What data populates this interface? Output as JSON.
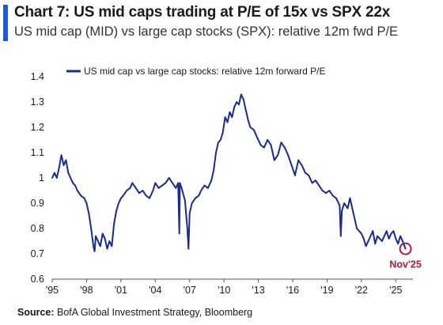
{
  "header": {
    "title": "Chart 7: US mid caps trading at P/E of 15x vs SPX 22x",
    "subtitle": "US mid cap (MID) vs large cap stocks (SPX): relative 12m fwd P/E"
  },
  "footer": {
    "source_label": "Source:",
    "source_text": " BofA Global Investment Strategy, Bloomberg"
  },
  "colors": {
    "accent": "#1f5ad6",
    "series": "#1a2b8f",
    "annotation": "#b3173a"
  },
  "chart_data": {
    "type": "line",
    "title": "Chart 7: US mid caps trading at P/E of 15x vs SPX 22x",
    "subtitle": "US mid cap (MID) vs large cap stocks (SPX): relative 12m fwd P/E",
    "xlabel": "",
    "ylabel": "",
    "ylim": [
      0.6,
      1.4
    ],
    "yticks": [
      0.6,
      0.7,
      0.8,
      0.9,
      1,
      1.1,
      1.2,
      1.3,
      1.4
    ],
    "ytick_labels": [
      "0.6",
      "0.7",
      "0.8",
      "0.9",
      "1",
      "1.1",
      "1.2",
      "1.3",
      "1.4"
    ],
    "xlim": [
      1995,
      2026.5
    ],
    "xticks": [
      1995,
      1998,
      2001,
      2004,
      2007,
      2010,
      2013,
      2016,
      2019,
      2022,
      2025
    ],
    "xtick_labels": [
      "'95",
      "'98",
      "'01",
      "'04",
      "'07",
      "'10",
      "'13",
      "'16",
      "'19",
      "'22",
      "'25"
    ],
    "grid": false,
    "legend_position": "top",
    "annotation": {
      "label": "Nov'25",
      "x": 2025.85,
      "y": 0.72
    },
    "series": [
      {
        "name": "US mid cap vs large cap stocks: relative 12m forward P/E",
        "points": [
          [
            1995.0,
            1.0
          ],
          [
            1995.2,
            1.02
          ],
          [
            1995.4,
            1.0
          ],
          [
            1995.6,
            1.04
          ],
          [
            1995.8,
            1.09
          ],
          [
            1996.0,
            1.05
          ],
          [
            1996.2,
            1.07
          ],
          [
            1996.4,
            1.02
          ],
          [
            1996.6,
            1.0
          ],
          [
            1996.8,
            0.98
          ],
          [
            1997.0,
            0.97
          ],
          [
            1997.2,
            0.95
          ],
          [
            1997.5,
            0.93
          ],
          [
            1997.8,
            0.92
          ],
          [
            1998.0,
            0.9
          ],
          [
            1998.2,
            0.86
          ],
          [
            1998.4,
            0.8
          ],
          [
            1998.6,
            0.73
          ],
          [
            1998.7,
            0.71
          ],
          [
            1998.8,
            0.77
          ],
          [
            1999.0,
            0.75
          ],
          [
            1999.2,
            0.73
          ],
          [
            1999.4,
            0.78
          ],
          [
            1999.6,
            0.76
          ],
          [
            1999.8,
            0.72
          ],
          [
            2000.0,
            0.75
          ],
          [
            2000.2,
            0.73
          ],
          [
            2000.4,
            0.82
          ],
          [
            2000.6,
            0.87
          ],
          [
            2000.8,
            0.9
          ],
          [
            2001.0,
            0.92
          ],
          [
            2001.2,
            0.93
          ],
          [
            2001.5,
            0.95
          ],
          [
            2001.8,
            0.96
          ],
          [
            2002.0,
            0.98
          ],
          [
            2002.3,
            0.96
          ],
          [
            2002.6,
            0.94
          ],
          [
            2002.9,
            0.95
          ],
          [
            2003.2,
            0.93
          ],
          [
            2003.5,
            0.92
          ],
          [
            2003.8,
            0.95
          ],
          [
            2004.0,
            0.98
          ],
          [
            2004.3,
            0.96
          ],
          [
            2004.6,
            0.97
          ],
          [
            2004.9,
            0.98
          ],
          [
            2005.2,
            1.0
          ],
          [
            2005.5,
            0.98
          ],
          [
            2005.8,
            0.96
          ],
          [
            2006.0,
            0.98
          ],
          [
            2006.1,
            0.78
          ],
          [
            2006.15,
            0.98
          ],
          [
            2006.3,
            0.96
          ],
          [
            2006.6,
            0.91
          ],
          [
            2006.8,
            0.8
          ],
          [
            2006.9,
            0.72
          ],
          [
            2007.0,
            0.86
          ],
          [
            2007.2,
            0.9
          ],
          [
            2007.5,
            0.92
          ],
          [
            2007.8,
            0.93
          ],
          [
            2008.0,
            0.95
          ],
          [
            2008.3,
            0.97
          ],
          [
            2008.6,
            0.96
          ],
          [
            2008.9,
            0.99
          ],
          [
            2009.1,
            1.03
          ],
          [
            2009.3,
            1.1
          ],
          [
            2009.5,
            1.14
          ],
          [
            2009.7,
            1.15
          ],
          [
            2009.9,
            1.18
          ],
          [
            2010.1,
            1.24
          ],
          [
            2010.3,
            1.22
          ],
          [
            2010.5,
            1.26
          ],
          [
            2010.7,
            1.24
          ],
          [
            2010.9,
            1.28
          ],
          [
            2011.1,
            1.3
          ],
          [
            2011.3,
            1.29
          ],
          [
            2011.5,
            1.33
          ],
          [
            2011.7,
            1.31
          ],
          [
            2011.9,
            1.27
          ],
          [
            2012.1,
            1.23
          ],
          [
            2012.3,
            1.2
          ],
          [
            2012.6,
            1.19
          ],
          [
            2012.9,
            1.16
          ],
          [
            2013.2,
            1.13
          ],
          [
            2013.5,
            1.12
          ],
          [
            2013.8,
            1.15
          ],
          [
            2014.1,
            1.13
          ],
          [
            2014.4,
            1.07
          ],
          [
            2014.7,
            1.09
          ],
          [
            2015.0,
            1.14
          ],
          [
            2015.3,
            1.12
          ],
          [
            2015.6,
            1.09
          ],
          [
            2015.9,
            1.05
          ],
          [
            2016.2,
            1.01
          ],
          [
            2016.5,
            1.07
          ],
          [
            2016.8,
            1.05
          ],
          [
            2017.1,
            1.02
          ],
          [
            2017.4,
            1.01
          ],
          [
            2017.7,
            0.98
          ],
          [
            2018.0,
            0.99
          ],
          [
            2018.3,
            0.97
          ],
          [
            2018.6,
            0.95
          ],
          [
            2018.9,
            0.94
          ],
          [
            2019.2,
            0.95
          ],
          [
            2019.5,
            0.93
          ],
          [
            2019.8,
            0.92
          ],
          [
            2020.1,
            0.89
          ],
          [
            2020.2,
            0.77
          ],
          [
            2020.3,
            0.87
          ],
          [
            2020.5,
            0.9
          ],
          [
            2020.8,
            0.88
          ],
          [
            2021.0,
            0.92
          ],
          [
            2021.2,
            0.88
          ],
          [
            2021.4,
            0.84
          ],
          [
            2021.6,
            0.8
          ],
          [
            2021.8,
            0.79
          ],
          [
            2022.0,
            0.78
          ],
          [
            2022.2,
            0.76
          ],
          [
            2022.4,
            0.73
          ],
          [
            2022.6,
            0.75
          ],
          [
            2022.8,
            0.77
          ],
          [
            2023.0,
            0.79
          ],
          [
            2023.2,
            0.74
          ],
          [
            2023.4,
            0.77
          ],
          [
            2023.6,
            0.76
          ],
          [
            2023.8,
            0.75
          ],
          [
            2024.0,
            0.77
          ],
          [
            2024.2,
            0.79
          ],
          [
            2024.4,
            0.76
          ],
          [
            2024.6,
            0.78
          ],
          [
            2024.8,
            0.79
          ],
          [
            2025.0,
            0.76
          ],
          [
            2025.2,
            0.74
          ],
          [
            2025.4,
            0.77
          ],
          [
            2025.6,
            0.75
          ],
          [
            2025.85,
            0.72
          ]
        ]
      }
    ]
  }
}
